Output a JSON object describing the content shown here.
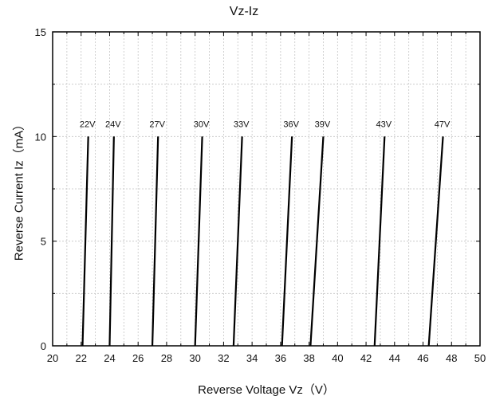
{
  "chart_data": {
    "type": "line",
    "title": "Vz-Iz",
    "xlabel": "Reverse Voltage Vz（V）",
    "ylabel": "Reverse Current Iz（mA）",
    "xlim": [
      20,
      50
    ],
    "ylim": [
      0,
      15
    ],
    "x_ticks": [
      "20",
      "22",
      "24",
      "26",
      "28",
      "30",
      "32",
      "34",
      "36",
      "38",
      "40",
      "42",
      "44",
      "46",
      "48",
      "50"
    ],
    "y_ticks": [
      "0",
      "5",
      "10",
      "15"
    ],
    "grid": true,
    "line_color": "#000000",
    "series": [
      {
        "name": "22V",
        "points": [
          [
            22.1,
            0
          ],
          [
            22.5,
            10
          ]
        ]
      },
      {
        "name": "24V",
        "points": [
          [
            24.0,
            0
          ],
          [
            24.3,
            10
          ]
        ]
      },
      {
        "name": "27V",
        "points": [
          [
            27.0,
            0
          ],
          [
            27.4,
            10
          ]
        ]
      },
      {
        "name": "30V",
        "points": [
          [
            30.0,
            0
          ],
          [
            30.5,
            10
          ]
        ]
      },
      {
        "name": "33V",
        "points": [
          [
            32.7,
            0
          ],
          [
            33.3,
            10
          ]
        ]
      },
      {
        "name": "36V",
        "points": [
          [
            36.1,
            0
          ],
          [
            36.8,
            10
          ]
        ]
      },
      {
        "name": "39V",
        "points": [
          [
            38.1,
            0
          ],
          [
            39.0,
            10
          ]
        ]
      },
      {
        "name": "43V",
        "points": [
          [
            42.6,
            0
          ],
          [
            43.3,
            10
          ]
        ]
      },
      {
        "name": "47V",
        "points": [
          [
            46.4,
            0
          ],
          [
            47.4,
            10
          ]
        ]
      }
    ]
  }
}
